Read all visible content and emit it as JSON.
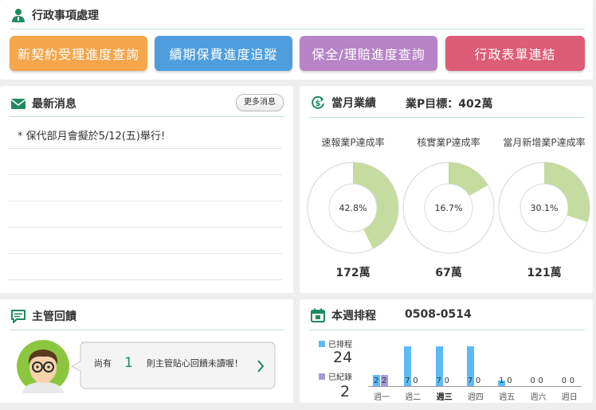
{
  "admin": {
    "title": "行政事項處理",
    "buttons": [
      {
        "label": "新契約受理進度查詢",
        "color": "#f5a54a"
      },
      {
        "label": "續期保費進度追蹤",
        "color": "#4e9ede"
      },
      {
        "label": "保全/理賠進度查詢",
        "color": "#b784c8"
      },
      {
        "label": "行政表單連結",
        "color": "#dd5d76"
      }
    ]
  },
  "news": {
    "title": "最新消息",
    "more_label": "更多消息",
    "items": [
      "* 保代部月會擬於5/12(五)舉行!"
    ]
  },
  "performance": {
    "title": "當月業績",
    "target_label": "業P目標：402萬",
    "gauges": [
      {
        "title": "速報業P達成率",
        "percent": 42.8,
        "percent_label": "42.8%",
        "value_label": "172萬"
      },
      {
        "title": "核實業P達成率",
        "percent": 16.7,
        "percent_label": "16.7%",
        "value_label": "67萬"
      },
      {
        "title": "當月新增業P達成率",
        "percent": 30.1,
        "percent_label": "30.1%",
        "value_label": "121萬"
      }
    ],
    "fill_color": "#c5dba0",
    "track_color": "#dadada"
  },
  "feedback": {
    "title": "主管回饋",
    "prefix": "尚有",
    "count": "1",
    "suffix": "則主管貼心回饋未讀喔！"
  },
  "schedule": {
    "title": "本週排程",
    "range": "0508-0514",
    "legend_scheduled": "已排程",
    "scheduled_total": "24",
    "legend_recorded": "已紀錄",
    "recorded_total": "2",
    "colors": {
      "scheduled": "#5bbcf5",
      "recorded": "#a79bd9"
    }
  },
  "chart_data": {
    "type": "bar",
    "categories": [
      "週一",
      "週二",
      "週三",
      "週四",
      "週五",
      "週六",
      "週日"
    ],
    "series": [
      {
        "name": "已排程",
        "values": [
          2,
          7,
          7,
          7,
          1,
          0,
          0
        ]
      },
      {
        "name": "已紀錄",
        "values": [
          2,
          0,
          0,
          0,
          0,
          0,
          0
        ]
      }
    ],
    "highlight": "週三",
    "ylim": [
      0,
      7
    ]
  }
}
